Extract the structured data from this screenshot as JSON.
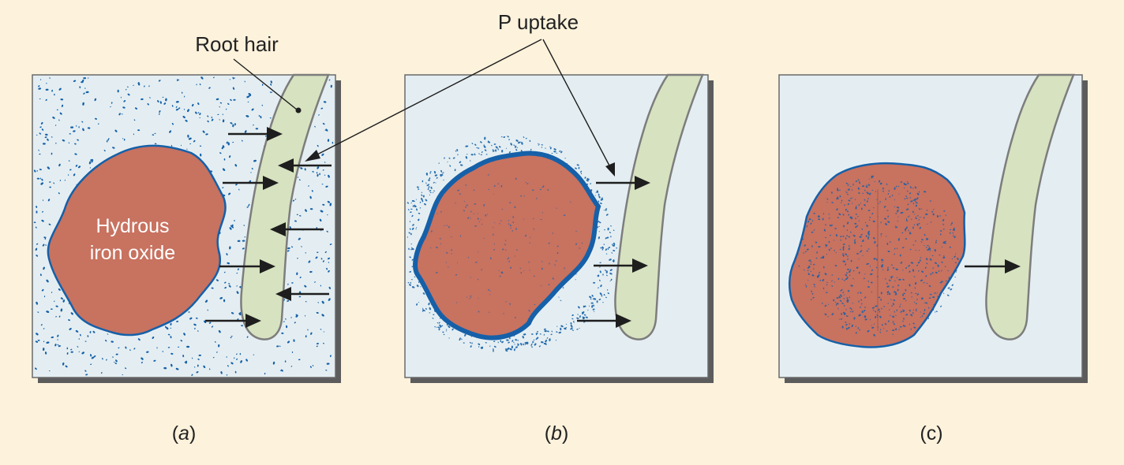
{
  "labels": {
    "root_hair": "Root hair",
    "p_uptake": "P uptake",
    "hydrous_line1": "Hydrous",
    "hydrous_line2": "iron oxide"
  },
  "panels": [
    {
      "id": "a",
      "caption_prefix": "(",
      "caption_letter": "a",
      "caption_suffix": ")"
    },
    {
      "id": "b",
      "caption_prefix": "(",
      "caption_letter": "b",
      "caption_suffix": ")"
    },
    {
      "id": "c",
      "caption": "(c)"
    }
  ],
  "colors": {
    "background": "#fdf2dc",
    "panel_fill": "#e4eef2",
    "root_hair_fill": "#d7e2c0",
    "iron_oxide_fill": "#c87260",
    "phosphate_blue": "#1560a8",
    "shadow": "#5c5c5c"
  }
}
